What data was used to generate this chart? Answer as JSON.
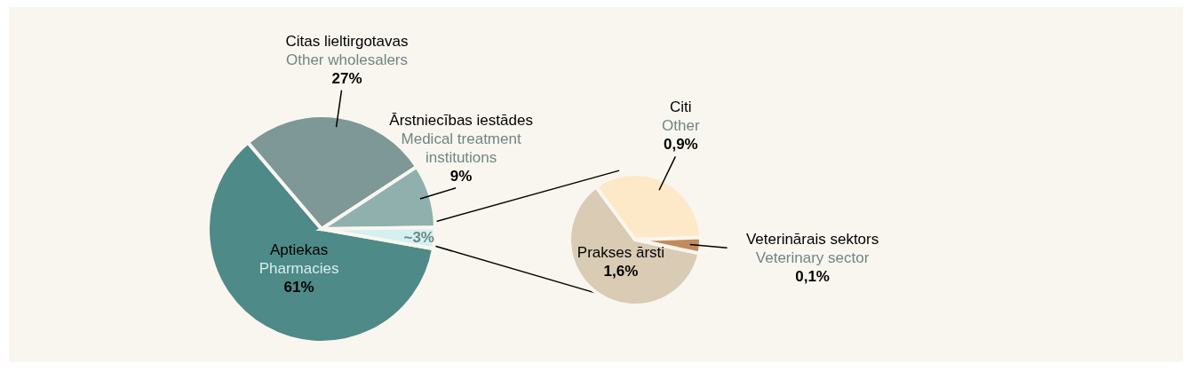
{
  "chart_data": [
    {
      "type": "pie",
      "categories": [
        "Aptiekas\nPharmacies",
        "Citas lieltirgotavas\nOther wholesalers",
        "Ārstniecības iestādes\nMedical treatment\ninstitutions",
        null
      ],
      "values": [
        61,
        27,
        9,
        3
      ],
      "colors": [
        "#4e8a87",
        "#7d9896",
        "#8fb0ad",
        "#d4f0f0"
      ],
      "value_labels": [
        "61%",
        "27%",
        "9%",
        "~3%"
      ]
    },
    {
      "type": "pie",
      "categories": [
        "Prakses ārsti",
        "Citi\nOther",
        "Veterinārais sektors\nVeterinary sector"
      ],
      "values": [
        1.6,
        0.9,
        0.1
      ],
      "colors": [
        "#d9cbb4",
        "#fde9c8",
        "#c48a5c"
      ],
      "value_labels": [
        "1,6%",
        "0,9%",
        "0,1%"
      ]
    }
  ]
}
